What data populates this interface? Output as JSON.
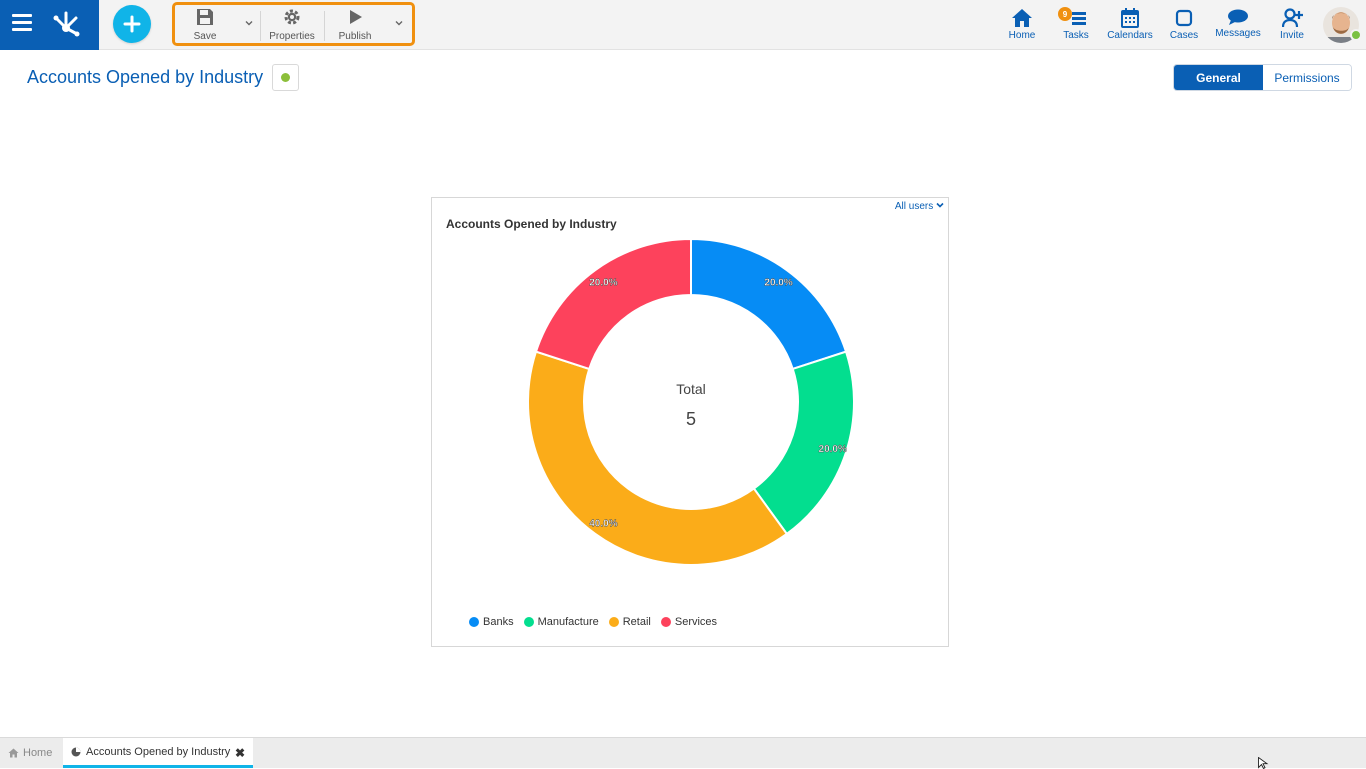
{
  "topbar": {
    "toolbar": {
      "save_label": "Save",
      "properties_label": "Properties",
      "publish_label": "Publish"
    },
    "nav": [
      {
        "label": "Home",
        "icon": "home-icon"
      },
      {
        "label": "Tasks",
        "icon": "tasks-icon",
        "badge": "9"
      },
      {
        "label": "Calendars",
        "icon": "calendar-icon"
      },
      {
        "label": "Cases",
        "icon": "cases-icon"
      },
      {
        "label": "Messages",
        "icon": "messages-icon"
      },
      {
        "label": "Invite",
        "icon": "invite-icon"
      }
    ]
  },
  "page": {
    "title": "Accounts Opened by Industry",
    "tabs": [
      {
        "label": "General",
        "active": true
      },
      {
        "label": "Permissions",
        "active": false
      }
    ]
  },
  "card": {
    "filter_label": "All users"
  },
  "chart_data": {
    "type": "pie",
    "title": "Accounts Opened by Industry",
    "center_label": "Total",
    "center_value": "5",
    "categories": [
      "Banks",
      "Manufacture",
      "Retail",
      "Services"
    ],
    "values": [
      1,
      1,
      2,
      1
    ],
    "percent_labels": [
      "20.0%",
      "20.0%",
      "40.0%",
      "20.0%"
    ],
    "colors": [
      "#068cf5",
      "#03de8f",
      "#fbac19",
      "#fd425c"
    ],
    "legend_position": "bottom-left"
  },
  "bottombar": {
    "home_label": "Home",
    "active_tab_label": "Accounts Opened by Industry"
  },
  "colors": {
    "brand": "#0a5fb4",
    "accent": "#10b4e8",
    "highlight": "#f0900f"
  }
}
